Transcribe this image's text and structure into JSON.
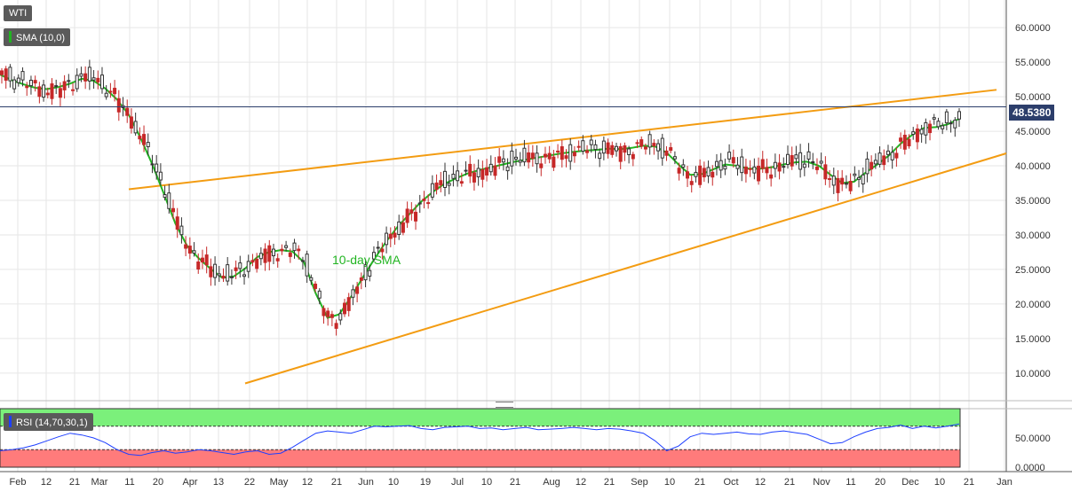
{
  "main_legend": {
    "symbol": "WTI",
    "sma_label": "SMA (10,0)"
  },
  "rsi_legend": {
    "label": "RSI (14,70,30,1)"
  },
  "price_tag": "48.5380",
  "annotation": "10-day SMA",
  "colors": {
    "background": "#ffffff",
    "grid": "#e6e6e6",
    "axis": "#555555",
    "bull": "#333333",
    "bear": "#c62828",
    "sma": "#22b522",
    "trendline": "#f39c12",
    "price_line": "#2c3e6b",
    "rsi_line": "#1e3fff",
    "rsi_overbought": "#7bf07b",
    "rsi_oversold": "#ff7b7b"
  },
  "chart_data": [
    {
      "type": "candlestick",
      "series_name": "WTI",
      "x_ticks": [
        "Feb",
        "12",
        "21",
        "Mar",
        "11",
        "20",
        "Apr",
        "13",
        "22",
        "May",
        "12",
        "21",
        "Jun",
        "10",
        "19",
        "Jul",
        "10",
        "21",
        "Aug",
        "12",
        "21",
        "Sep",
        "10",
        "21",
        "Oct",
        "12",
        "21",
        "Nov",
        "11",
        "20",
        "Dec",
        "10",
        "21",
        "Jan"
      ],
      "y_ticks": [
        "10.0000",
        "15.0000",
        "20.0000",
        "25.0000",
        "30.0000",
        "35.0000",
        "40.0000",
        "45.0000",
        "50.0000",
        "55.0000",
        "60.0000"
      ],
      "ylim": [
        6,
        64
      ],
      "last_price": 48.538,
      "sma_10_day": [
        53.2,
        52.4,
        51.8,
        51.3,
        51.1,
        51.4,
        51.9,
        52.6,
        52.3,
        51.2,
        49.6,
        47.4,
        44.1,
        40.3,
        36.0,
        31.6,
        28.4,
        26.6,
        25.1,
        23.8,
        24.0,
        25.2,
        26.8,
        27.5,
        27.8,
        27.6,
        26.0,
        21.5,
        18.0,
        18.5,
        21.0,
        23.8,
        26.5,
        29.0,
        31.2,
        33.0,
        34.8,
        36.2,
        37.4,
        38.2,
        38.9,
        39.4,
        39.8,
        40.2,
        40.6,
        40.9,
        41.2,
        41.5,
        41.8,
        42.0,
        42.2,
        42.3,
        42.5,
        42.4,
        42.6,
        42.9,
        42.8,
        41.9,
        40.2,
        38.7,
        38.8,
        39.5,
        40.2,
        40.0,
        39.6,
        39.6,
        39.8,
        40.2,
        40.5,
        40.6,
        40.0,
        38.7,
        37.5,
        37.7,
        39.0,
        40.2,
        41.5,
        43.2,
        44.5,
        45.5,
        45.6,
        46.0,
        46.8
      ],
      "rsi": [
        28,
        30,
        33,
        38,
        45,
        52,
        58,
        55,
        50,
        42,
        30,
        22,
        20,
        25,
        28,
        24,
        26,
        30,
        28,
        25,
        22,
        26,
        28,
        22,
        24,
        34,
        46,
        58,
        62,
        60,
        58,
        64,
        70,
        69,
        70,
        71,
        66,
        64,
        68,
        69,
        70,
        66,
        67,
        64,
        66,
        68,
        64,
        65,
        66,
        68,
        66,
        64,
        66,
        65,
        62,
        58,
        45,
        28,
        36,
        52,
        58,
        56,
        58,
        60,
        57,
        56,
        60,
        62,
        59,
        56,
        48,
        40,
        42,
        52,
        60,
        66,
        68,
        72,
        66,
        70,
        67,
        70,
        74
      ],
      "rsi_ylim": [
        0,
        100
      ],
      "rsi_ticks": [
        "0.0000",
        "50.0000"
      ],
      "rsi_bands": {
        "overbought": 70,
        "oversold": 30
      }
    }
  ]
}
